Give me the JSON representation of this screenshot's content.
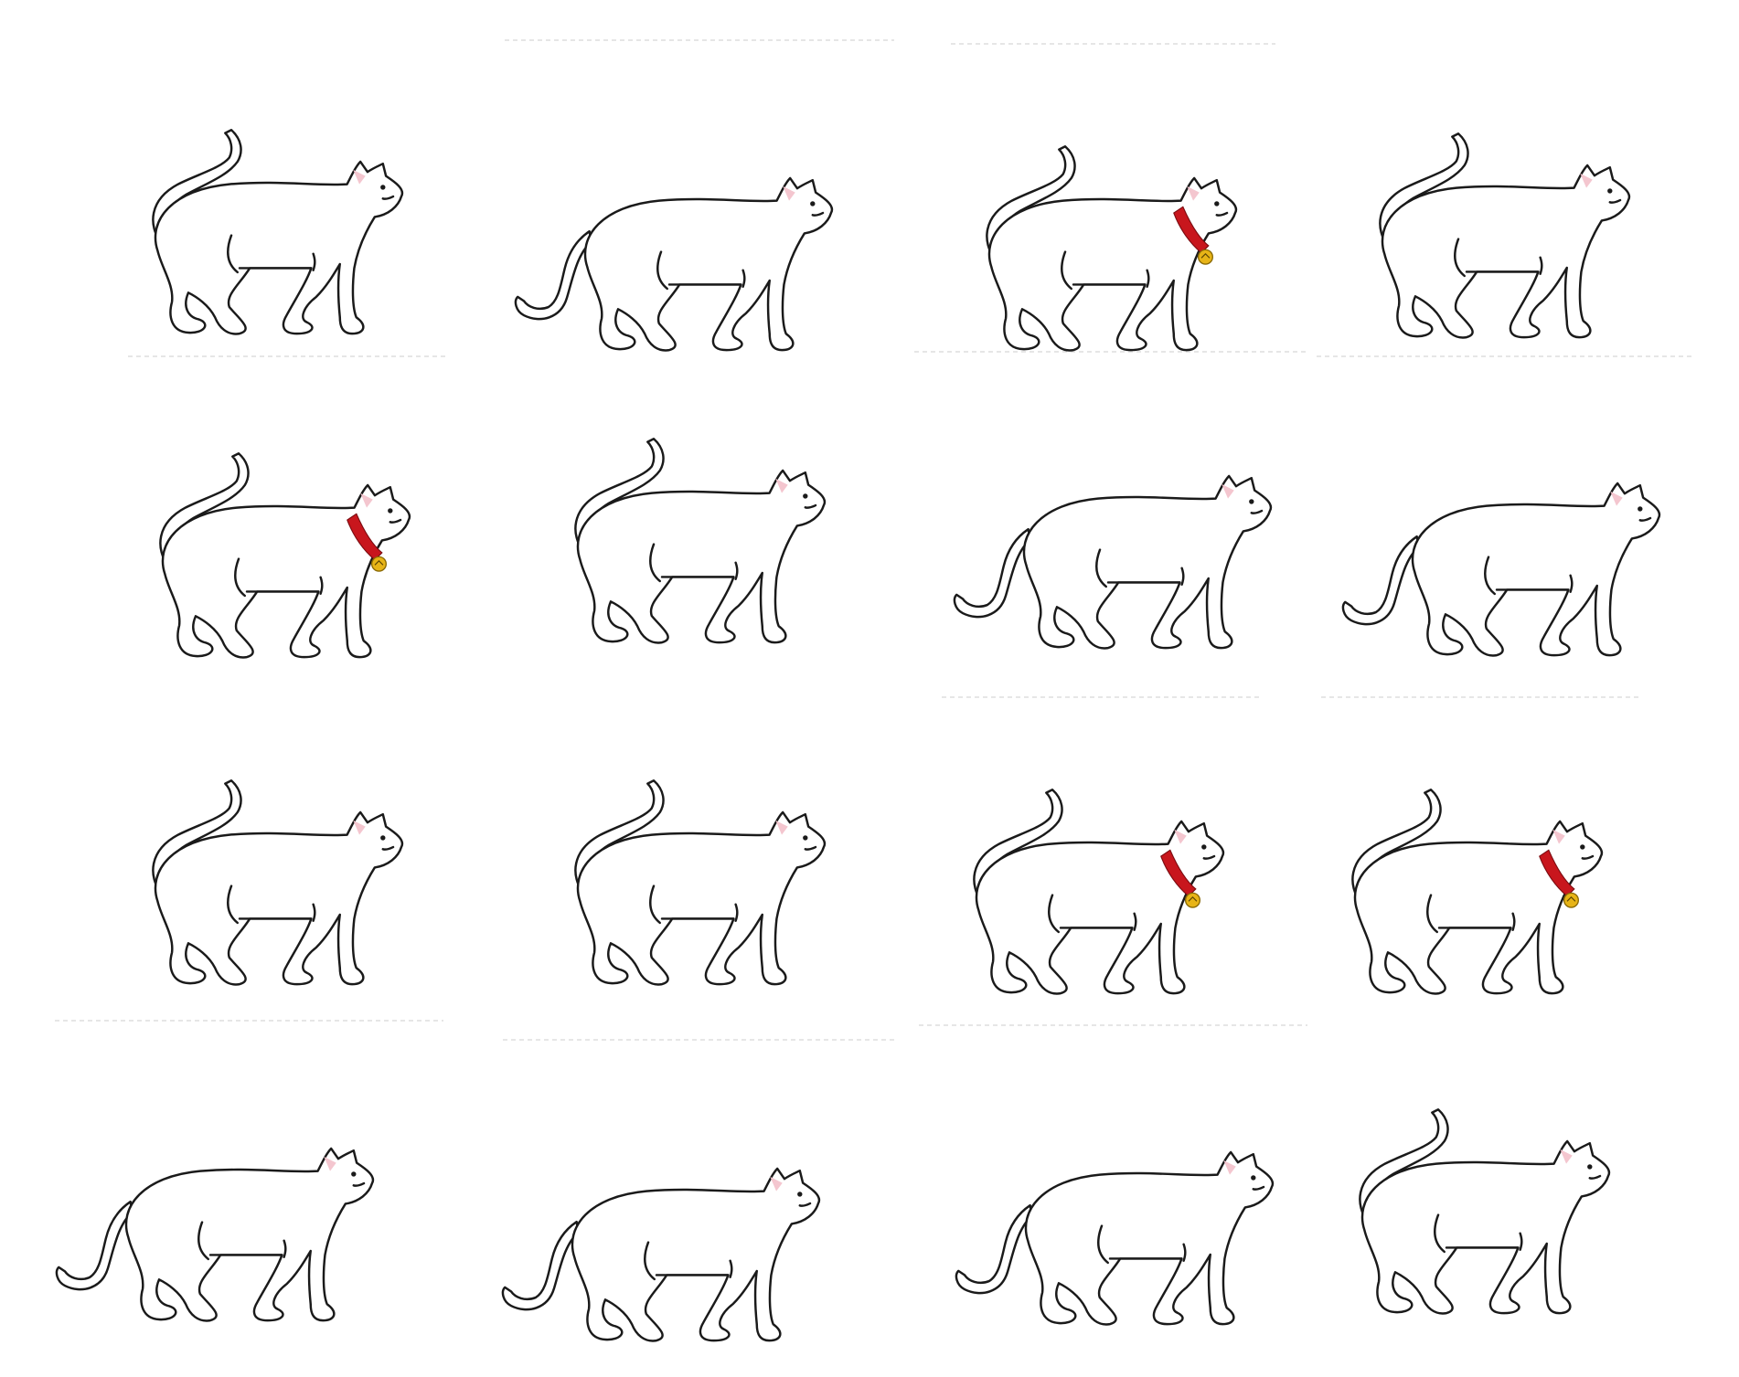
{
  "sheet": {
    "background_color": "#ffffff",
    "outline_color": "#1a1a1a",
    "ear_color": "#f4c6cf",
    "collar_color": "#c8161d",
    "bell_color": "#e7b417",
    "divider_color": "#d6d6d6"
  },
  "cats": [
    {
      "row": 1,
      "col": 1,
      "tail": "up",
      "collar": false
    },
    {
      "row": 1,
      "col": 2,
      "tail": "down",
      "collar": false
    },
    {
      "row": 1,
      "col": 3,
      "tail": "up",
      "collar": true
    },
    {
      "row": 1,
      "col": 4,
      "tail": "up",
      "collar": false
    },
    {
      "row": 2,
      "col": 1,
      "tail": "up",
      "collar": true
    },
    {
      "row": 2,
      "col": 2,
      "tail": "up",
      "collar": false
    },
    {
      "row": 2,
      "col": 3,
      "tail": "down",
      "collar": false
    },
    {
      "row": 2,
      "col": 4,
      "tail": "down",
      "collar": false
    },
    {
      "row": 3,
      "col": 1,
      "tail": "up",
      "collar": false
    },
    {
      "row": 3,
      "col": 2,
      "tail": "up",
      "collar": false
    },
    {
      "row": 3,
      "col": 3,
      "tail": "up",
      "collar": true
    },
    {
      "row": 3,
      "col": 4,
      "tail": "up",
      "collar": true
    },
    {
      "row": 4,
      "col": 1,
      "tail": "down",
      "collar": false
    },
    {
      "row": 4,
      "col": 2,
      "tail": "down",
      "collar": false
    },
    {
      "row": 4,
      "col": 3,
      "tail": "down",
      "collar": false
    },
    {
      "row": 4,
      "col": 4,
      "tail": "up",
      "collar": false
    }
  ]
}
